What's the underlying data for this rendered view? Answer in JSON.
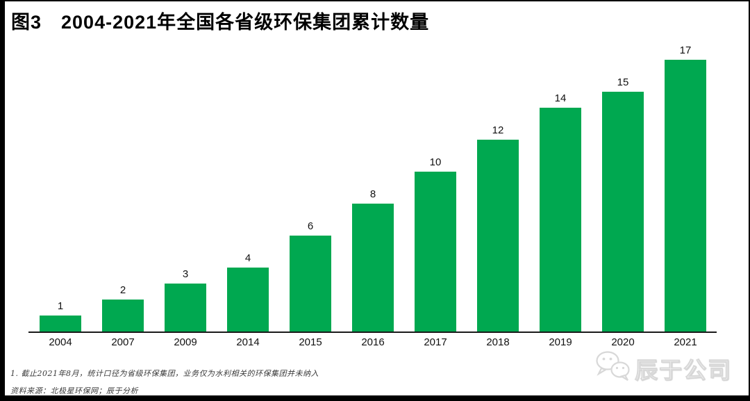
{
  "header": {
    "title": "图3　2004-2021年全国各省级环保集团累计数量"
  },
  "chart_data": {
    "type": "bar",
    "title": "图3 2004-2021年全国各省级环保集团累计数量",
    "categories": [
      "2004",
      "2007",
      "2009",
      "2014",
      "2015",
      "2016",
      "2017",
      "2018",
      "2019",
      "2020",
      "2021"
    ],
    "values": [
      1,
      2,
      3,
      4,
      6,
      8,
      10,
      12,
      14,
      15,
      17
    ],
    "xlabel": "",
    "ylabel": "",
    "ylim": [
      0,
      17.5
    ],
    "grid": false,
    "legend": "none",
    "value_labels_shown": true,
    "bar_color": "#00A850",
    "axis_color": "#1a1a1a"
  },
  "footnotes": {
    "note1": "1. 截止2021年8月，统计口径为省级环保集团，业务仅为水利相关的环保集团并未纳入",
    "note2": "资料来源：北极星环保网；辰于分析"
  },
  "watermark": {
    "icon": "wechat-icon",
    "label": "辰于公司"
  }
}
